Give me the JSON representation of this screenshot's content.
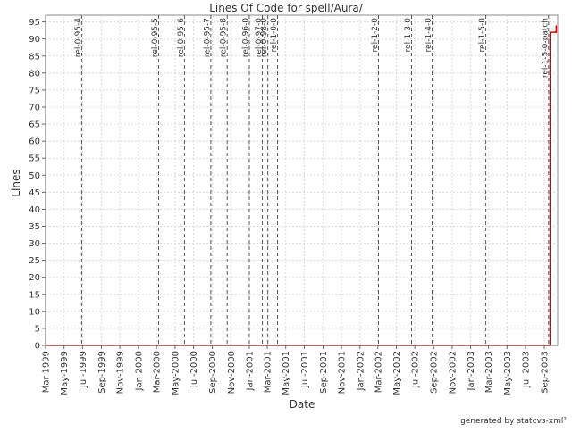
{
  "chart_data": {
    "type": "line",
    "title": "Lines Of Code for spell/Aura/",
    "xlabel": "Date",
    "ylabel": "Lines",
    "credit": "generated by statcvs-xml²",
    "xlim": [
      "1999-03-01",
      "2003-10-15"
    ],
    "ylim": [
      0,
      97
    ],
    "y_ticks": [
      0,
      5,
      10,
      15,
      20,
      25,
      30,
      35,
      40,
      45,
      50,
      55,
      60,
      65,
      70,
      75,
      80,
      85,
      90,
      95
    ],
    "x_ticks": [
      {
        "date": "1999-03-01",
        "label": "Mar-1999"
      },
      {
        "date": "1999-05-01",
        "label": "May-1999"
      },
      {
        "date": "1999-07-01",
        "label": "Jul-1999"
      },
      {
        "date": "1999-09-01",
        "label": "Sep-1999"
      },
      {
        "date": "1999-11-01",
        "label": "Nov-1999"
      },
      {
        "date": "2000-01-01",
        "label": "Jan-2000"
      },
      {
        "date": "2000-03-01",
        "label": "Mar-2000"
      },
      {
        "date": "2000-05-01",
        "label": "May-2000"
      },
      {
        "date": "2000-07-01",
        "label": "Jul-2000"
      },
      {
        "date": "2000-09-01",
        "label": "Sep-2000"
      },
      {
        "date": "2000-11-01",
        "label": "Nov-2000"
      },
      {
        "date": "2001-01-01",
        "label": "Jan-2001"
      },
      {
        "date": "2001-03-01",
        "label": "Mar-2001"
      },
      {
        "date": "2001-05-01",
        "label": "May-2001"
      },
      {
        "date": "2001-07-01",
        "label": "Jul-2001"
      },
      {
        "date": "2001-09-01",
        "label": "Sep-2001"
      },
      {
        "date": "2001-11-01",
        "label": "Nov-2001"
      },
      {
        "date": "2002-01-01",
        "label": "Jan-2002"
      },
      {
        "date": "2002-03-01",
        "label": "Mar-2002"
      },
      {
        "date": "2002-05-01",
        "label": "May-2002"
      },
      {
        "date": "2002-07-01",
        "label": "Jul-2002"
      },
      {
        "date": "2002-09-01",
        "label": "Sep-2002"
      },
      {
        "date": "2002-11-01",
        "label": "Nov-2002"
      },
      {
        "date": "2003-01-01",
        "label": "Jan-2003"
      },
      {
        "date": "2003-03-01",
        "label": "Mar-2003"
      },
      {
        "date": "2003-05-01",
        "label": "May-2003"
      },
      {
        "date": "2003-07-01",
        "label": "Jul-2003"
      },
      {
        "date": "2003-09-01",
        "label": "Sep-2003"
      }
    ],
    "markers": [
      {
        "label": "rel-0-95-4",
        "date": "1999-06-28"
      },
      {
        "label": "rel-0-95-5",
        "date": "2000-03-08"
      },
      {
        "label": "rel-0-95-6",
        "date": "2000-06-01"
      },
      {
        "label": "rel-0-95-7",
        "date": "2000-08-27"
      },
      {
        "label": "rel-0-95-8",
        "date": "2000-10-20"
      },
      {
        "label": "rel-0-96-0",
        "date": "2001-01-01"
      },
      {
        "label": "rel-0-97-0",
        "date": "2001-02-13"
      },
      {
        "label": "rel-0-98-0",
        "date": "2001-03-03"
      },
      {
        "label": "rel-1-0-0",
        "date": "2001-04-04"
      },
      {
        "label": "rel-1-2-0",
        "date": "2002-03-03"
      },
      {
        "label": "rel-1-3-0",
        "date": "2002-06-20"
      },
      {
        "label": "rel-1-4-0",
        "date": "2002-08-27"
      },
      {
        "label": "rel-1-5-0",
        "date": "2003-02-20"
      },
      {
        "label": "rel-1-5-0-patch",
        "date": "2003-09-15"
      }
    ],
    "grid": true,
    "series": [
      {
        "color": "#cc0000",
        "points": [
          {
            "x": "1999-03-01",
            "y": 0
          },
          {
            "x": "2003-09-20",
            "y": 0
          },
          {
            "x": "2003-09-20",
            "y": 92
          },
          {
            "x": "2003-10-10",
            "y": 92
          },
          {
            "x": "2003-10-10",
            "y": 94
          }
        ]
      }
    ]
  }
}
